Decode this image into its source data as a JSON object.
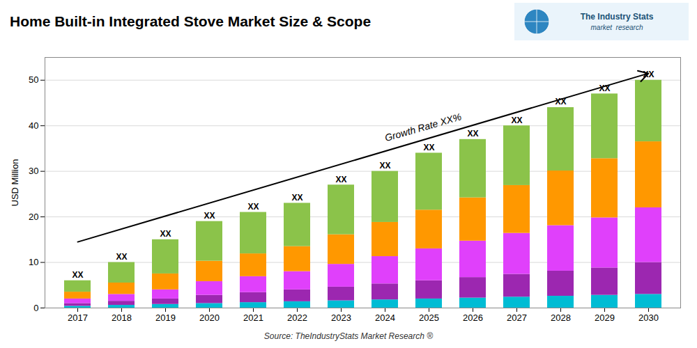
{
  "chart_data": {
    "type": "bar",
    "title": "Home Built-in Integrated Stove Market Size & Scope",
    "ylabel": "USD Million",
    "caption": "Source: TheIndustryStats Market Research ®",
    "categories": [
      "2017",
      "2018",
      "2019",
      "2020",
      "2021",
      "2022",
      "2023",
      "2024",
      "2025",
      "2026",
      "2027",
      "2028",
      "2029",
      "2030"
    ],
    "series": [
      {
        "color": "#00bcd4",
        "values": [
          0.4,
          0.6,
          0.8,
          1.0,
          1.2,
          1.4,
          1.6,
          1.8,
          2.0,
          2.2,
          2.4,
          2.6,
          2.8,
          3.0
        ]
      },
      {
        "color": "#9c27b0",
        "values": [
          0.6,
          0.9,
          1.2,
          1.8,
          2.2,
          2.6,
          3.0,
          3.5,
          4.0,
          4.5,
          5.0,
          5.5,
          6.0,
          7.0
        ]
      },
      {
        "color": "#e040fb",
        "values": [
          1.0,
          1.5,
          2.0,
          3.0,
          3.5,
          4.0,
          5.0,
          6.0,
          7.0,
          8.0,
          9.0,
          10.0,
          11.0,
          12.0
        ]
      },
      {
        "color": "#ff9800",
        "values": [
          1.5,
          2.5,
          3.5,
          4.5,
          5.0,
          5.5,
          6.5,
          7.5,
          8.5,
          9.5,
          10.5,
          12.0,
          13.0,
          14.5
        ]
      },
      {
        "color": "#8bc34a",
        "values": [
          2.5,
          4.5,
          7.5,
          8.7,
          9.1,
          9.5,
          10.9,
          11.2,
          12.5,
          12.8,
          13.1,
          13.9,
          14.2,
          13.5
        ]
      }
    ],
    "stacked": true,
    "ylim": [
      0,
      55
    ],
    "yticks": [
      0,
      10,
      20,
      30,
      40,
      50
    ],
    "grid": true,
    "annotations": [
      {
        "text": "XX",
        "x": "2017",
        "y": 6
      },
      {
        "text": "XX",
        "x": "2018",
        "y": 10
      },
      {
        "text": "XX",
        "x": "2019",
        "y": 15
      },
      {
        "text": "XX",
        "x": "2020",
        "y": 19
      },
      {
        "text": "XX",
        "x": "2021",
        "y": 21
      },
      {
        "text": "XX",
        "x": "2022",
        "y": 23
      },
      {
        "text": "XX",
        "x": "2023",
        "y": 27
      },
      {
        "text": "XX",
        "x": "2024",
        "y": 30
      },
      {
        "text": "XX",
        "x": "2025",
        "y": 34
      },
      {
        "text": "XX",
        "x": "2026",
        "y": 37
      },
      {
        "text": "XX",
        "x": "2027",
        "y": 40
      },
      {
        "text": "XX",
        "x": "2028",
        "y": 44
      },
      {
        "text": "XX",
        "x": "2029",
        "y": 47
      },
      {
        "text": "XX",
        "x": "2030",
        "y": 50
      },
      {
        "text": "Growth Rate XX%",
        "x": "2024",
        "y": 36
      },
      {
        "type": "arrow",
        "x1": "2017",
        "y1": 14.5,
        "x2": "2030",
        "y2": 51.5
      },
      {
        "text": "The Industry Stats",
        "color": "#1a5276"
      },
      {
        "text": "market  research",
        "color": "#1a5276"
      }
    ]
  }
}
